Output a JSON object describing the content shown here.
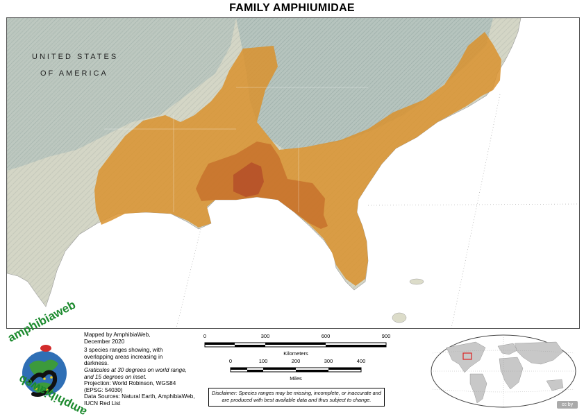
{
  "title": "FAMILY AMPHIUMIDAE",
  "map": {
    "country_label_line1": "UNITED STATES",
    "country_label_line2": "OF AMERICA",
    "colors": {
      "land": "#dcdcc9",
      "highland": "#b9c4ba",
      "water": "#ffffff",
      "range_light": "#d9922e",
      "range_mid": "#c9722a",
      "range_dark": "#b5522a",
      "border": "#888888"
    }
  },
  "logo": {
    "top_word": "amphibiaweb",
    "bottom_word": "amphibiaweb",
    "icon": "salamander-globe-icon"
  },
  "info": {
    "line1": "Mapped by AmphibiaWeb,",
    "line2": "December 2020",
    "line3": "3 species ranges showing, with",
    "line4": "overlapping areas increasing in",
    "line5": "darkness.",
    "line6": "Graticules at 30 degrees on world range,",
    "line7": "and 15 degrees on inset.",
    "line8": "Projection: World Robinson, WGS84",
    "line9": "(EPSG: 54030)",
    "line10": "Data Sources: Natural Earth, AmphibiaWeb,",
    "line11": "IUCN Red List"
  },
  "scale_km": {
    "ticks": [
      "0",
      "300",
      "600",
      "900"
    ],
    "unit": "Kilometers"
  },
  "scale_mi": {
    "ticks": [
      "0",
      "100",
      "200",
      "300",
      "400"
    ],
    "unit": "Miles"
  },
  "disclaimer": "Disclaimer: Species ranges may be missing, incomplete, or inaccurate and are produced with best available data and thus subject to change.",
  "license_badge": "cc by"
}
